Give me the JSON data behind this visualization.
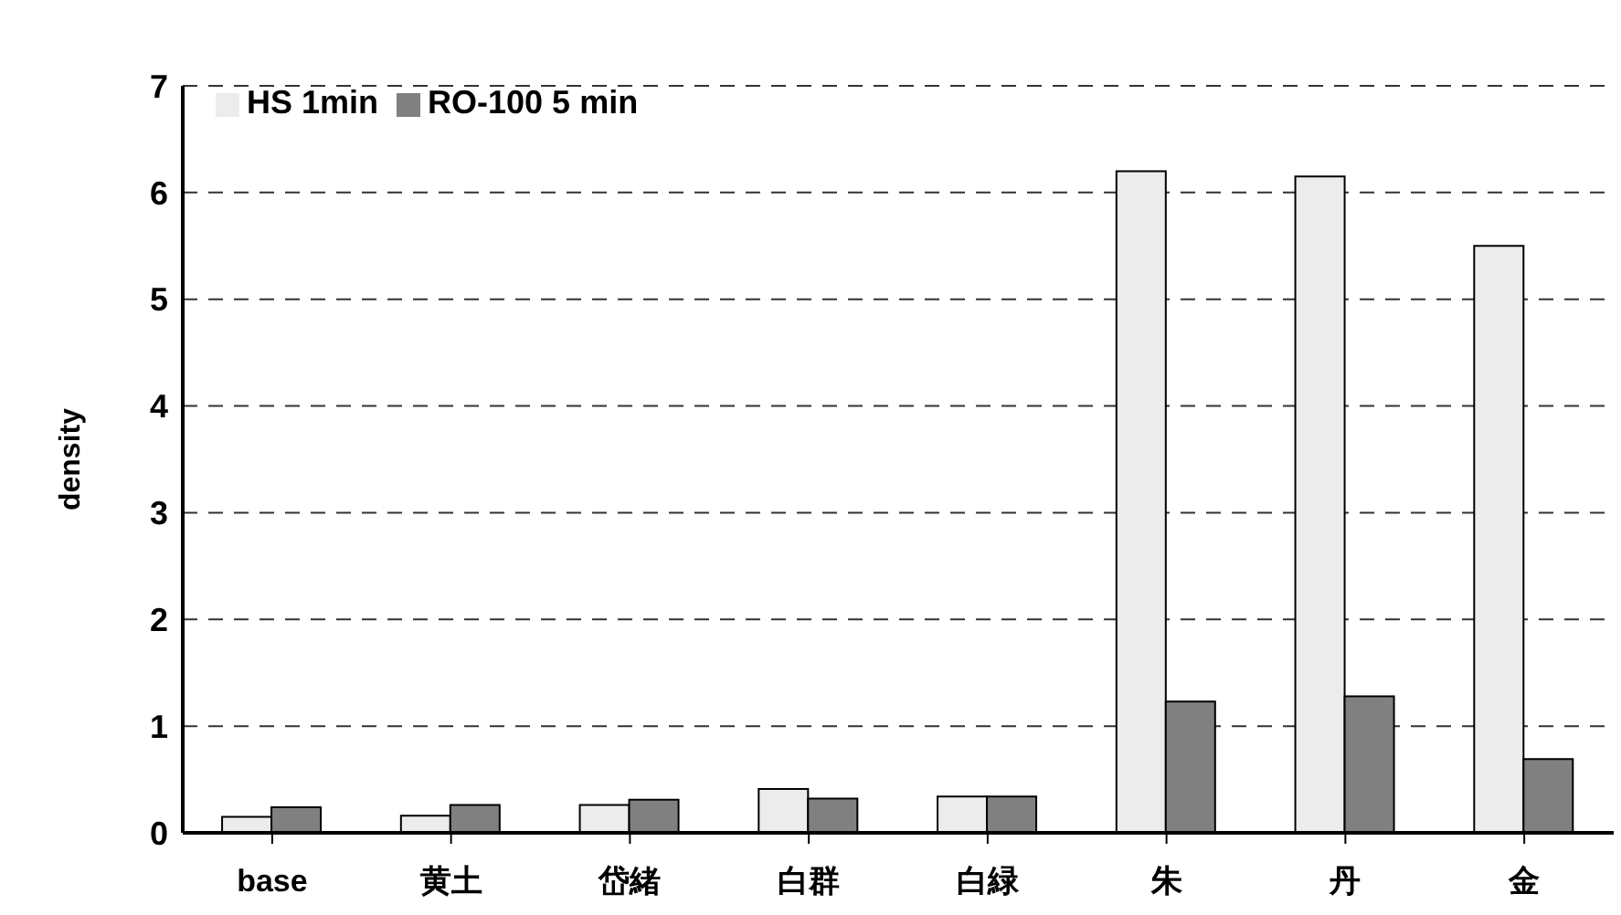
{
  "chart_data": {
    "type": "bar",
    "ylabel": "density",
    "categories": [
      "base",
      "黄土",
      "岱緒",
      "白群",
      "白緑",
      "朱",
      "丹",
      "金"
    ],
    "series": [
      {
        "name": "HS 1min",
        "color": "#ececec",
        "values": [
          0.15,
          0.16,
          0.26,
          0.41,
          0.34,
          6.2,
          6.15,
          5.5
        ]
      },
      {
        "name": "RO-100 5 min",
        "color": "#808080",
        "values": [
          0.24,
          0.26,
          0.31,
          0.32,
          0.34,
          1.23,
          1.28,
          0.69
        ]
      }
    ],
    "ylim": [
      0,
      7
    ],
    "yticks": [
      0,
      1,
      2,
      3,
      4,
      5,
      6,
      7
    ],
    "grid": "y",
    "legend": "top left"
  }
}
